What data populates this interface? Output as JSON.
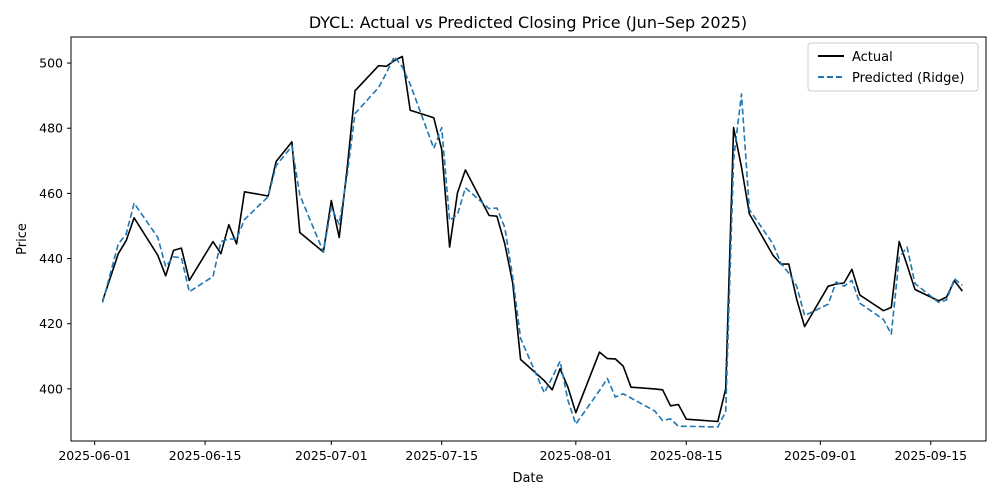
{
  "chart_data": {
    "type": "line",
    "title": "DYCL: Actual vs Predicted Closing Price (Jun–Sep 2025)",
    "xlabel": "Date",
    "ylabel": "Price",
    "xlim": [
      "2025-05-29",
      "2025-09-22"
    ],
    "ylim": [
      384,
      508
    ],
    "x_ticks": [
      "2025-06-01",
      "2025-06-15",
      "2025-07-01",
      "2025-07-15",
      "2025-08-01",
      "2025-08-15",
      "2025-09-01",
      "2025-09-15"
    ],
    "y_ticks": [
      400,
      420,
      440,
      460,
      480,
      500
    ],
    "grid": false,
    "legend": "top-right",
    "series": [
      {
        "name": "Actual",
        "color": "#000000",
        "style": "solid",
        "points": [
          [
            "2025-06-02",
            427
          ],
          [
            "2025-06-04",
            441.5
          ],
          [
            "2025-06-05",
            445.5
          ],
          [
            "2025-06-06",
            452.5
          ],
          [
            "2025-06-09",
            441
          ],
          [
            "2025-06-10",
            434.7
          ],
          [
            "2025-06-11",
            442.5
          ],
          [
            "2025-06-12",
            443.2
          ],
          [
            "2025-06-13",
            433.3
          ],
          [
            "2025-06-16",
            445.2
          ],
          [
            "2025-06-17",
            441.5
          ],
          [
            "2025-06-18",
            450.4
          ],
          [
            "2025-06-19",
            444.5
          ],
          [
            "2025-06-20",
            460.5
          ],
          [
            "2025-06-23",
            459.2
          ],
          [
            "2025-06-24",
            469.8
          ],
          [
            "2025-06-26",
            475.8
          ],
          [
            "2025-06-27",
            448
          ],
          [
            "2025-06-30",
            442
          ],
          [
            "2025-07-01",
            457.8
          ],
          [
            "2025-07-02",
            446.5
          ],
          [
            "2025-07-03",
            467.5
          ],
          [
            "2025-07-04",
            491.5
          ],
          [
            "2025-07-07",
            499.2
          ],
          [
            "2025-07-08",
            499
          ],
          [
            "2025-07-09",
            500.8
          ],
          [
            "2025-07-10",
            502
          ],
          [
            "2025-07-11",
            485.5
          ],
          [
            "2025-07-14",
            483.2
          ],
          [
            "2025-07-15",
            473.5
          ],
          [
            "2025-07-16",
            443.5
          ],
          [
            "2025-07-17",
            460.2
          ],
          [
            "2025-07-18",
            467.2
          ],
          [
            "2025-07-21",
            453.2
          ],
          [
            "2025-07-22",
            453
          ],
          [
            "2025-07-23",
            444.5
          ],
          [
            "2025-07-24",
            432.5
          ],
          [
            "2025-07-25",
            409
          ],
          [
            "2025-07-28",
            402.5
          ],
          [
            "2025-07-29",
            399.7
          ],
          [
            "2025-07-30",
            406.2
          ],
          [
            "2025-07-31",
            400.5
          ],
          [
            "2025-08-01",
            392.7
          ],
          [
            "2025-08-04",
            411.3
          ],
          [
            "2025-08-05",
            409.3
          ],
          [
            "2025-08-06",
            409.2
          ],
          [
            "2025-08-07",
            407
          ],
          [
            "2025-08-08",
            400.5
          ],
          [
            "2025-08-11",
            400
          ],
          [
            "2025-08-12",
            399.7
          ],
          [
            "2025-08-13",
            394.8
          ],
          [
            "2025-08-14",
            395.2
          ],
          [
            "2025-08-15",
            390.7
          ],
          [
            "2025-08-19",
            390
          ],
          [
            "2025-08-20",
            400
          ],
          [
            "2025-08-21",
            480.2
          ],
          [
            "2025-08-22",
            468
          ],
          [
            "2025-08-23",
            453.7
          ],
          [
            "2025-08-26",
            441
          ],
          [
            "2025-08-27",
            438.3
          ],
          [
            "2025-08-28",
            438.3
          ],
          [
            "2025-08-29",
            427.5
          ],
          [
            "2025-08-30",
            419.1
          ],
          [
            "2025-09-02",
            431.5
          ],
          [
            "2025-09-03",
            432.2
          ],
          [
            "2025-09-04",
            432.5
          ],
          [
            "2025-09-05",
            436.7
          ],
          [
            "2025-09-06",
            428.8
          ],
          [
            "2025-09-09",
            424
          ],
          [
            "2025-09-10",
            425
          ],
          [
            "2025-09-11",
            445.2
          ],
          [
            "2025-09-12",
            438
          ],
          [
            "2025-09-13",
            430.5
          ],
          [
            "2025-09-16",
            427
          ],
          [
            "2025-09-17",
            428.2
          ],
          [
            "2025-09-18",
            433.2
          ],
          [
            "2025-09-19",
            430
          ]
        ]
      },
      {
        "name": "Predicted (Ridge)",
        "color": "#1f77b4",
        "style": "dashed",
        "points": [
          [
            "2025-06-02",
            426.5
          ],
          [
            "2025-06-04",
            444.5
          ],
          [
            "2025-06-05",
            447.5
          ],
          [
            "2025-06-06",
            457
          ],
          [
            "2025-06-09",
            446.5
          ],
          [
            "2025-06-10",
            437.5
          ],
          [
            "2025-06-11",
            440.5
          ],
          [
            "2025-06-12",
            440.3
          ],
          [
            "2025-06-13",
            429.8
          ],
          [
            "2025-06-16",
            434.5
          ],
          [
            "2025-06-17",
            445.2
          ],
          [
            "2025-06-18",
            446
          ],
          [
            "2025-06-19",
            446
          ],
          [
            "2025-06-20",
            452
          ],
          [
            "2025-06-23",
            459
          ],
          [
            "2025-06-24",
            468.5
          ],
          [
            "2025-06-26",
            474.5
          ],
          [
            "2025-06-27",
            459.5
          ],
          [
            "2025-06-30",
            442
          ],
          [
            "2025-07-01",
            455.8
          ],
          [
            "2025-07-02",
            450.5
          ],
          [
            "2025-07-03",
            465.5
          ],
          [
            "2025-07-04",
            484.5
          ],
          [
            "2025-07-07",
            492.5
          ],
          [
            "2025-07-08",
            497
          ],
          [
            "2025-07-09",
            502
          ],
          [
            "2025-07-10",
            498.8
          ],
          [
            "2025-07-11",
            493.5
          ],
          [
            "2025-07-14",
            473.8
          ],
          [
            "2025-07-15",
            480.2
          ],
          [
            "2025-07-16",
            451.7
          ],
          [
            "2025-07-17",
            453.5
          ],
          [
            "2025-07-18",
            461.7
          ],
          [
            "2025-07-21",
            455.3
          ],
          [
            "2025-07-22",
            455.5
          ],
          [
            "2025-07-23",
            449.5
          ],
          [
            "2025-07-24",
            434.3
          ],
          [
            "2025-07-25",
            415.5
          ],
          [
            "2025-07-28",
            398.8
          ],
          [
            "2025-07-29",
            403.5
          ],
          [
            "2025-07-30",
            408.5
          ],
          [
            "2025-07-31",
            396.5
          ],
          [
            "2025-08-01",
            389.2
          ],
          [
            "2025-08-04",
            399.5
          ],
          [
            "2025-08-05",
            403.2
          ],
          [
            "2025-08-06",
            397.5
          ],
          [
            "2025-08-07",
            398.5
          ],
          [
            "2025-08-08",
            397.2
          ],
          [
            "2025-08-11",
            393.2
          ],
          [
            "2025-08-12",
            390.3
          ],
          [
            "2025-08-13",
            390.8
          ],
          [
            "2025-08-14",
            388.5
          ],
          [
            "2025-08-15",
            388.5
          ],
          [
            "2025-08-19",
            388.3
          ],
          [
            "2025-08-20",
            393
          ],
          [
            "2025-08-21",
            470.5
          ],
          [
            "2025-08-22",
            490.5
          ],
          [
            "2025-08-23",
            455
          ],
          [
            "2025-08-26",
            444.5
          ],
          [
            "2025-08-27",
            438.5
          ],
          [
            "2025-08-28",
            435.5
          ],
          [
            "2025-08-29",
            431.5
          ],
          [
            "2025-08-30",
            422.5
          ],
          [
            "2025-09-02",
            426
          ],
          [
            "2025-09-03",
            432.8
          ],
          [
            "2025-09-04",
            431.5
          ],
          [
            "2025-09-05",
            433.3
          ],
          [
            "2025-09-06",
            426.3
          ],
          [
            "2025-09-09",
            421.3
          ],
          [
            "2025-09-10",
            416.8
          ],
          [
            "2025-09-11",
            440.3
          ],
          [
            "2025-09-12",
            443.5
          ],
          [
            "2025-09-13",
            432.3
          ],
          [
            "2025-09-16",
            426.5
          ],
          [
            "2025-09-17",
            427.3
          ],
          [
            "2025-09-18",
            433.8
          ],
          [
            "2025-09-19",
            431.8
          ]
        ]
      }
    ]
  }
}
